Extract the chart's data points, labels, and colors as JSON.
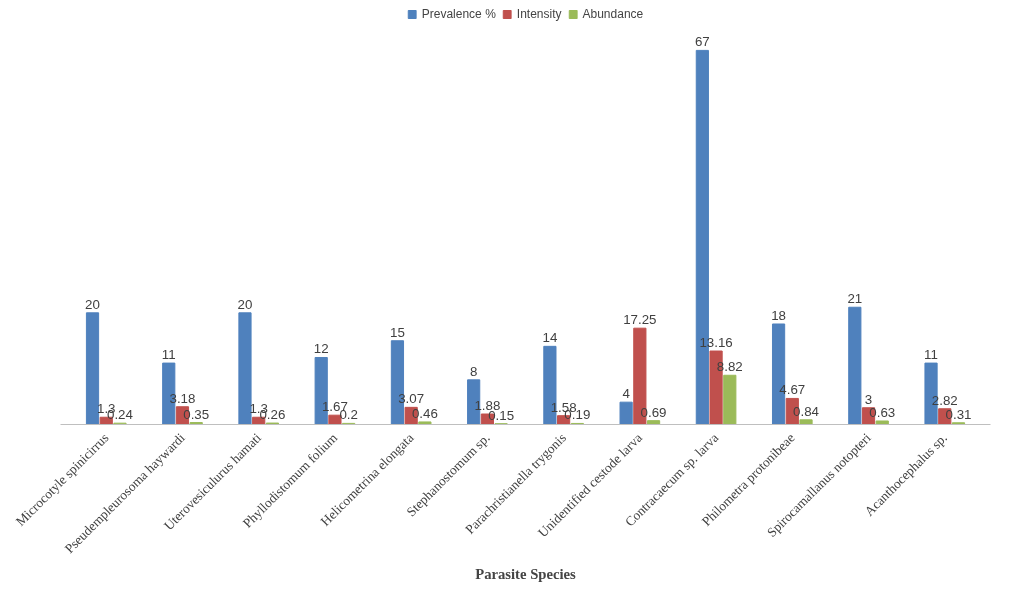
{
  "chart_data": {
    "type": "bar",
    "xlabel": "Parasite Species",
    "data_labels": true,
    "legend": "top",
    "categories": [
      "Microcotyle spinicirrus",
      "Pseudempleurosoma haywardi",
      "Uterovesiculurus hamati",
      "Phyllodistomum folium",
      "Helicometrina elongata",
      "Stephanostomum sp.",
      "Parachristianella trygonis",
      "Unidentified cestode larva",
      "Contracaecum sp. larva",
      "Philometra protonibeae",
      "Spirocamallanus notopteri",
      "Acanthocephalus sp."
    ],
    "series": [
      {
        "name": "Prevalence %",
        "color": "#4f81bd",
        "values": [
          20,
          11,
          20,
          12,
          15,
          8,
          14,
          4,
          67,
          18,
          21,
          11
        ]
      },
      {
        "name": "Intensity",
        "color": "#c0504d",
        "values": [
          1.3,
          3.18,
          1.3,
          1.67,
          3.07,
          1.88,
          1.58,
          17.25,
          13.16,
          4.67,
          3,
          2.82
        ]
      },
      {
        "name": "Abundance",
        "color": "#9bbb59",
        "values": [
          0.24,
          0.35,
          0.26,
          0.2,
          0.46,
          0.15,
          0.19,
          0.69,
          8.82,
          0.84,
          0.63,
          0.31
        ]
      }
    ]
  }
}
